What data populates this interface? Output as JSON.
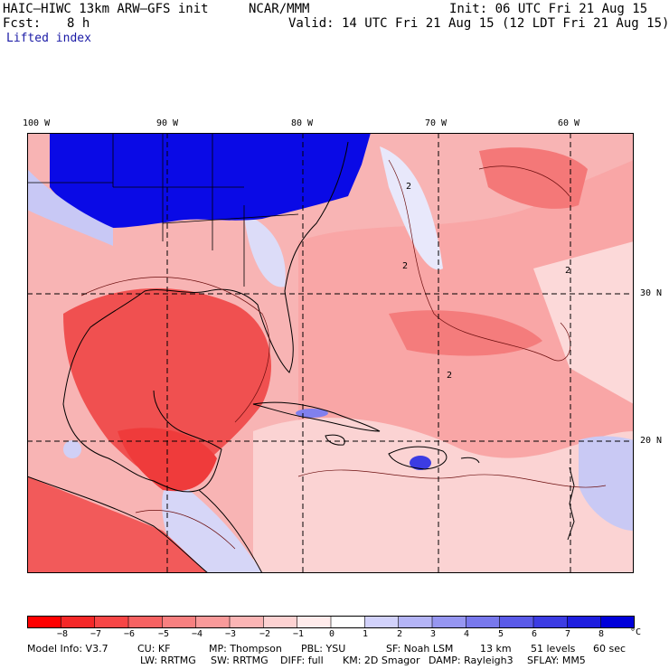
{
  "header": {
    "model": "HAIC–HIWC 13km ARW–GFS init",
    "org": "NCAR/MMM",
    "init": "Init: 06 UTC Fri 21 Aug 15",
    "fcst_label": "Fcst:",
    "fcst_value": "8 h",
    "valid": "Valid: 14 UTC Fri 21 Aug 15 (12 LDT Fri 21 Aug 15)",
    "field": "Lifted index"
  },
  "map": {
    "lon_labels": [
      "100 W",
      "90 W",
      "80 W",
      "70 W",
      "60 W"
    ],
    "lat_labels": [
      "30 N",
      "20 N"
    ],
    "contour_labels": [
      "2",
      "2",
      "2",
      "2"
    ],
    "colors": {
      "deep_negative": "#ef3b3b",
      "negative": "#f8a0a0",
      "near_zero": "#fbd7d7",
      "positive": "#c8c8f3",
      "strong_positive": "#0a0ae6",
      "coastline": "#000000"
    }
  },
  "colorbar": {
    "unit": "°C",
    "labels": [
      "−8",
      "−7",
      "−6",
      "−5",
      "−4",
      "−3",
      "−2",
      "−1",
      "0",
      "1",
      "2",
      "3",
      "4",
      "5",
      "6",
      "7",
      "8"
    ],
    "colors": [
      "#ff0000",
      "#f52828",
      "#f74646",
      "#f66262",
      "#f78080",
      "#f99a9a",
      "#fbb5b5",
      "#fdd2d2",
      "#ffebeb",
      "#ffffff",
      "#d2d2fb",
      "#b4b4f6",
      "#9696f1",
      "#7878ec",
      "#5a5ae8",
      "#3c3ce3",
      "#1e1edf",
      "#0000da"
    ]
  },
  "footer": {
    "line1": [
      "Model Info: V3.7",
      "CU: KF",
      "MP: Thompson",
      "PBL: YSU",
      "SF: Noah LSM",
      "13 km",
      "51 levels",
      "60 sec"
    ],
    "line2": [
      "LW: RRTMG",
      "SW: RRTMG",
      "DIFF: full",
      "KM: 2D Smagor",
      "DAMP: Rayleigh3",
      "SFLAY: MM5"
    ]
  }
}
